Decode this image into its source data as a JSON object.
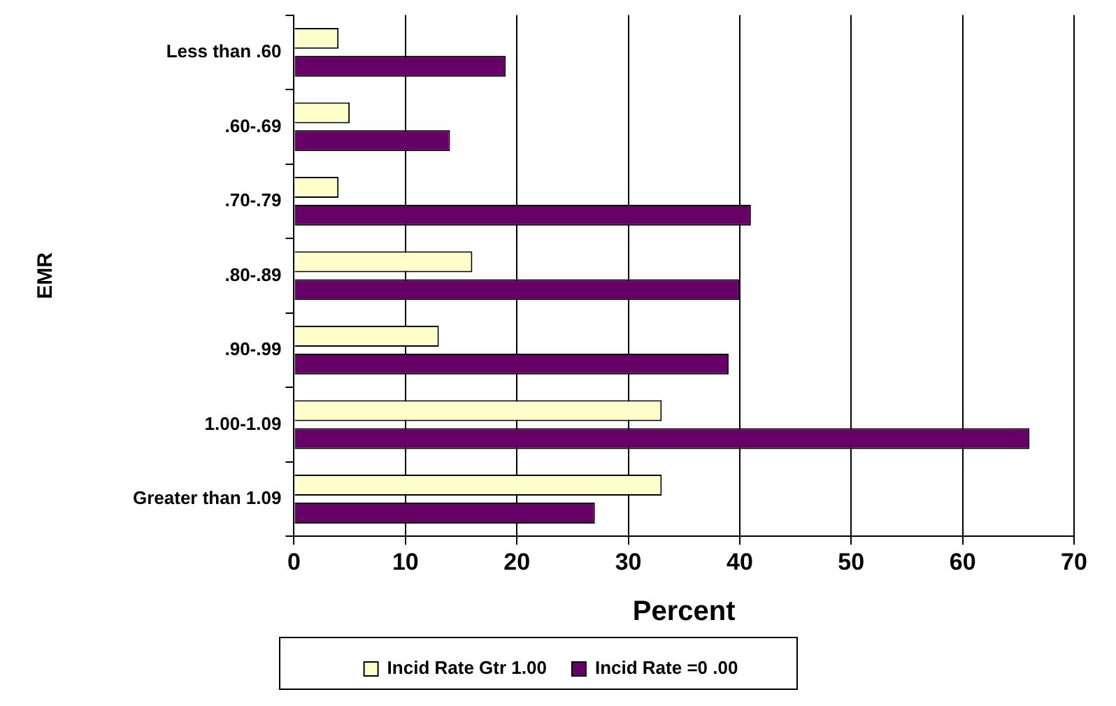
{
  "chart_data": {
    "type": "bar",
    "orientation": "horizontal",
    "xlabel": "Percent",
    "ylabel": "EMR",
    "categories": [
      "Less than .60",
      ".60-.69",
      ".70-.79",
      ".80-.89",
      ".90-.99",
      "1.00-1.09",
      "Greater than 1.09"
    ],
    "series": [
      {
        "name": "Incid Rate Gtr 1.00",
        "color": "#ffffcc",
        "values": [
          4,
          5,
          4,
          16,
          13,
          33,
          33
        ]
      },
      {
        "name": "Incid Rate =0 .00",
        "color": "#660066",
        "values": [
          19,
          14,
          41,
          40,
          39,
          66,
          27
        ]
      }
    ],
    "xlim": [
      0,
      70
    ],
    "xticks": [
      0,
      10,
      20,
      30,
      40,
      50,
      60,
      70
    ],
    "grid": "x",
    "legend": "bottom"
  }
}
